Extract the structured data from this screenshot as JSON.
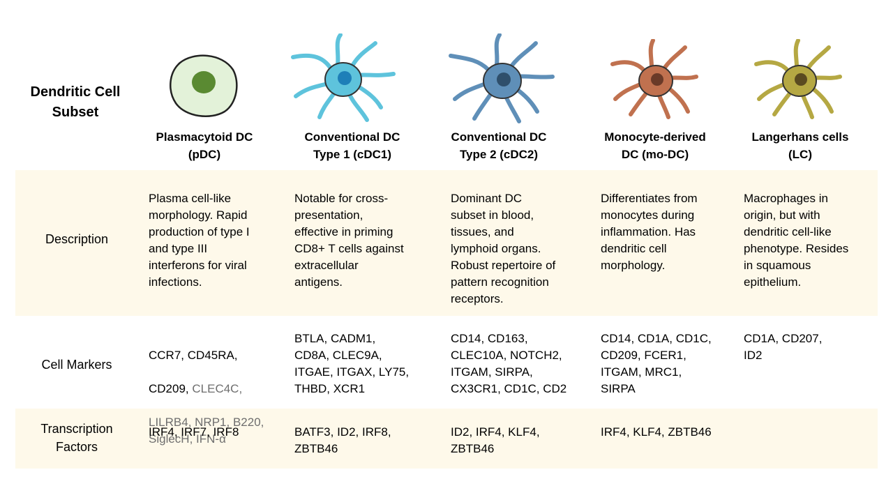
{
  "title": "Dendritic Cell\nSubset",
  "row_labels": {
    "description": "Description",
    "markers": "Cell Markers",
    "tf": "Transcription\nFactors"
  },
  "columns": [
    {
      "header": "Plasmacytoid DC\n(pDC)",
      "description": "Plasma cell-like\nmorphology. Rapid\nproduction of type I\nand type III\ninterferons for viral\ninfections.",
      "markers_line1": "CCR7, CD45RA,",
      "markers_line2_black": "CD209, ",
      "markers_line2_gray": "CLEC4C,",
      "markers_gray_rest": "LILRB4, NRP1, B220,\nSiglecH, IFN-α",
      "tf": "IRF4, IRF7, IRF8",
      "cell_color": "#5a8a32"
    },
    {
      "header": "Conventional DC\nType 1 (cDC1)",
      "description": "Notable for cross-\npresentation,\neffective in priming\nCD8+ T cells against\nextracellular\nantigens.",
      "markers": "BTLA, CADM1,\nCD8A, CLEC9A,\nITGAE, ITGAX, LY75,\nTHBD, XCR1",
      "tf": "BATF3, ID2, IRF8,\nZBTB46",
      "cell_color": "#5ec3dc"
    },
    {
      "header": "Conventional DC\nType 2 (cDC2)",
      "description": "Dominant DC\nsubset in blood,\ntissues, and\nlymphoid organs.\nRobust repertoire of\npattern recognition\nreceptors.",
      "markers": "CD14, CD163,\nCLEC10A, NOTCH2,\nITGAM, SIRPA,\nCX3CR1, CD1C, CD2",
      "tf": "ID2, IRF4, KLF4,\nZBTB46",
      "cell_color": "#5f8fb8"
    },
    {
      "header": "Monocyte-derived\nDC (mo-DC)",
      "description": "Differentiates from\nmonocytes during\ninflammation. Has\ndendritic cell\nmorphology.",
      "markers": "CD14, CD1A, CD1C,\nCD209, FCER1,\nITGAM, MRC1,\nSIRPA",
      "tf": "IRF4, KLF4, ZBTB46",
      "cell_color": "#c0714f"
    },
    {
      "header": "Langerhans cells\n(LC)",
      "description": "Macrophages in\norigin, but with\ndendritic cell-like\nphenotype. Resides\nin squamous\nepithelium.",
      "markers": "CD1A, CD207,\nID2",
      "tf": "",
      "cell_color": "#b5a843"
    }
  ]
}
